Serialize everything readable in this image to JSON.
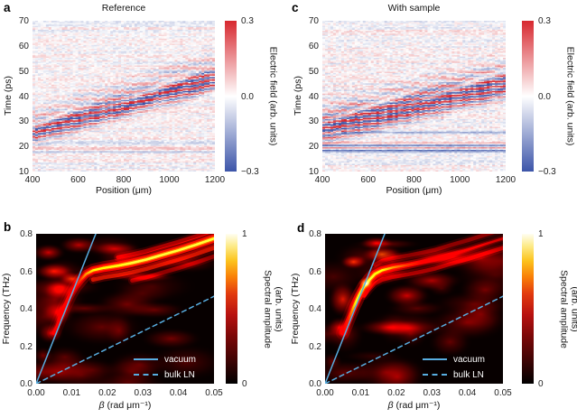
{
  "figure": {
    "background": "#ffffff"
  },
  "colors": {
    "diverging_positive": "#d7282f",
    "diverging_negative": "#3c55a9",
    "diverging_mid": "#ffffff",
    "hot_low": "#000000",
    "hot_high": "#fffef2",
    "overlay_line_cyan": "#58ade0",
    "legend_text": "#ffffff"
  },
  "chart_data": [
    {
      "panel_letter": "a",
      "type": "heatmap",
      "title": "Reference",
      "xlabel": "Position (μm)",
      "ylabel": "Time (ps)",
      "xlim": [
        400,
        1200
      ],
      "xticks": [
        "400",
        "600",
        "800",
        "1000",
        "1200"
      ],
      "ylim": [
        10,
        70
      ],
      "yticks": [
        "70",
        "60",
        "50",
        "40",
        "30",
        "20",
        "10"
      ],
      "colorbar": {
        "label": "Electric field (arb. units)",
        "ticks": [
          "0.3",
          "0.0",
          "−0.3"
        ],
        "vmin": -0.3,
        "vmax": 0.3,
        "colormap": "diverging blue-white-red"
      },
      "wavepacket": {
        "t_at_400um": 25.2,
        "t_at_1200um": 46.5,
        "sigma_ps": 2.7,
        "period_ps": 2.2,
        "peak": 0.34
      },
      "streaks": [
        {
          "t": 17.8,
          "amp": -0.07
        },
        {
          "t": 19.0,
          "amp": 0.06
        },
        {
          "t": 21.2,
          "amp": -0.055
        }
      ],
      "noise": 0.045,
      "seed": 7
    },
    {
      "panel_letter": "b",
      "type": "heatmap",
      "title": "",
      "xlabel_symbol": "β",
      "xlabel_rest": "(rad μm⁻¹)",
      "ylabel": "Frequency (THz)",
      "xlim": [
        0,
        0.05
      ],
      "xticks": [
        "0.00",
        "0.01",
        "0.02",
        "0.03",
        "0.04",
        "0.05"
      ],
      "ylim": [
        0,
        0.8
      ],
      "yticks": [
        "0.8",
        "0.6",
        "0.4",
        "0.2",
        "0.0"
      ],
      "colorbar": {
        "label_line1": "Spectral amplitude",
        "label_line2": "(arb. units)",
        "ticks": [
          "1",
          "0"
        ],
        "vmin": 0,
        "vmax": 1,
        "colormap": "hot"
      },
      "lines": [
        {
          "label": "vacuum",
          "style": "solid",
          "slope_thz_per_rad_um": 47.7
        },
        {
          "label": "bulk LN",
          "style": "dashed",
          "slope_thz_per_rad_um": 9.33
        }
      ],
      "mode_curve": [
        [
          0.005,
          0.27,
          0.22
        ],
        [
          0.0065,
          0.34,
          0.26
        ],
        [
          0.008,
          0.41,
          0.3
        ],
        [
          0.0095,
          0.47,
          0.36
        ],
        [
          0.011,
          0.52,
          0.45
        ],
        [
          0.0125,
          0.555,
          0.55
        ],
        [
          0.014,
          0.585,
          0.7
        ],
        [
          0.016,
          0.605,
          0.82
        ],
        [
          0.019,
          0.618,
          0.9
        ],
        [
          0.023,
          0.63,
          0.95
        ],
        [
          0.027,
          0.645,
          1.0
        ],
        [
          0.031,
          0.663,
          1.0
        ],
        [
          0.035,
          0.685,
          1.0
        ],
        [
          0.04,
          0.712,
          1.0
        ],
        [
          0.045,
          0.742,
          1.0
        ],
        [
          0.05,
          0.775,
          1.0
        ]
      ],
      "side_fringes": [
        {
          "offset": -0.05,
          "from": 0.016,
          "intensity": 0.42
        },
        {
          "offset": 0.045,
          "from": 0.02,
          "intensity": 0.3
        },
        {
          "offset": -0.095,
          "from": 0.025,
          "intensity": 0.25
        }
      ],
      "glows": [
        {
          "x": 0.0035,
          "y": 0.7,
          "rx": 0.005,
          "ry": 0.05,
          "i": 0.33
        },
        {
          "x": 0.005,
          "y": 0.6,
          "rx": 0.006,
          "ry": 0.05,
          "i": 0.4
        },
        {
          "x": 0.0065,
          "y": 0.5,
          "rx": 0.005,
          "ry": 0.06,
          "i": 0.38
        },
        {
          "x": 0.006,
          "y": 0.38,
          "rx": 0.005,
          "ry": 0.07,
          "i": 0.33
        },
        {
          "x": 0.004,
          "y": 0.27,
          "rx": 0.004,
          "ry": 0.06,
          "i": 0.28
        },
        {
          "x": 0.01,
          "y": 0.56,
          "rx": 0.004,
          "ry": 0.04,
          "i": 0.45
        },
        {
          "x": 0.002,
          "y": 0.15,
          "rx": 0.003,
          "ry": 0.05,
          "i": 0.18
        },
        {
          "x": 0.012,
          "y": 0.74,
          "rx": 0.006,
          "ry": 0.05,
          "i": 0.3
        },
        {
          "x": 0.022,
          "y": 0.72,
          "rx": 0.008,
          "ry": 0.04,
          "i": 0.25
        },
        {
          "x": 0.03,
          "y": 0.57,
          "rx": 0.01,
          "ry": 0.03,
          "i": 0.3
        }
      ],
      "noise_blobs": 26,
      "seed": 11
    },
    {
      "panel_letter": "c",
      "type": "heatmap",
      "title": "With sample",
      "xlabel": "Position (μm)",
      "ylabel": "Time (ps)",
      "xlim": [
        400,
        1200
      ],
      "xticks": [
        "400",
        "600",
        "800",
        "1000",
        "1200"
      ],
      "ylim": [
        10,
        70
      ],
      "yticks": [
        "70",
        "60",
        "50",
        "40",
        "30",
        "20",
        "10"
      ],
      "colorbar": {
        "label": "Electric field (arb. units)",
        "ticks": [
          "0.3",
          "0.0",
          "−0.3"
        ],
        "vmin": -0.3,
        "vmax": 0.3,
        "colormap": "diverging blue-white-red"
      },
      "wavepacket": {
        "t_at_400um": 26.8,
        "t_at_1200um": 44.2,
        "sigma_ps": 3.4,
        "period_ps": 2.1,
        "peak": 0.36
      },
      "streaks": [
        {
          "t": 18.4,
          "amp": -0.22
        },
        {
          "t": 19.3,
          "amp": 0.17
        },
        {
          "t": 20.4,
          "amp": -0.24
        },
        {
          "t": 21.3,
          "amp": 0.13
        },
        {
          "t": 25.4,
          "amp": -0.12
        }
      ],
      "noise": 0.05,
      "seed": 21
    },
    {
      "panel_letter": "d",
      "type": "heatmap",
      "title": "",
      "xlabel_symbol": "β",
      "xlabel_rest": "(rad μm⁻¹)",
      "ylabel": "Frequency (THz)",
      "xlim": [
        0,
        0.05
      ],
      "xticks": [
        "0.00",
        "0.01",
        "0.02",
        "0.03",
        "0.04",
        "0.05"
      ],
      "ylim": [
        0,
        0.8
      ],
      "yticks": [
        "0.8",
        "0.6",
        "0.4",
        "0.2",
        "0.0"
      ],
      "colorbar": {
        "label_line1": "Spectral amplitude",
        "label_line2": "(arb. units)",
        "ticks": [
          "1",
          "0"
        ],
        "vmin": 0,
        "vmax": 1,
        "colormap": "hot"
      },
      "lines": [
        {
          "label": "vacuum",
          "style": "solid",
          "slope_thz_per_rad_um": 47.7
        },
        {
          "label": "bulk LN",
          "style": "dashed",
          "slope_thz_per_rad_um": 9.33
        }
      ],
      "mode_curve": [
        [
          0.005,
          0.27,
          0.3
        ],
        [
          0.0065,
          0.34,
          0.5
        ],
        [
          0.008,
          0.41,
          0.75
        ],
        [
          0.0095,
          0.47,
          0.95
        ],
        [
          0.011,
          0.52,
          1.0
        ],
        [
          0.0125,
          0.555,
          1.0
        ],
        [
          0.014,
          0.585,
          0.95
        ],
        [
          0.016,
          0.605,
          0.85
        ],
        [
          0.019,
          0.62,
          0.7
        ],
        [
          0.023,
          0.633,
          0.55
        ],
        [
          0.027,
          0.648,
          0.42
        ],
        [
          0.031,
          0.665,
          0.34
        ],
        [
          0.035,
          0.688,
          0.28
        ],
        [
          0.04,
          0.715,
          0.24
        ],
        [
          0.045,
          0.745,
          0.2
        ],
        [
          0.05,
          0.775,
          0.18
        ]
      ],
      "side_fringes": [
        {
          "offset": -0.05,
          "from": 0.011,
          "intensity": 0.3
        },
        {
          "offset": 0.05,
          "from": 0.014,
          "intensity": 0.25
        }
      ],
      "glows": [
        {
          "x": 0.016,
          "y": 0.69,
          "rx": 0.006,
          "ry": 0.05,
          "i": 0.5
        },
        {
          "x": 0.0145,
          "y": 0.75,
          "rx": 0.005,
          "ry": 0.04,
          "i": 0.35
        },
        {
          "x": 0.005,
          "y": 0.45,
          "rx": 0.0045,
          "ry": 0.1,
          "i": 0.4
        },
        {
          "x": 0.004,
          "y": 0.3,
          "rx": 0.004,
          "ry": 0.06,
          "i": 0.3
        },
        {
          "x": 0.023,
          "y": 0.47,
          "rx": 0.007,
          "ry": 0.07,
          "i": 0.33
        },
        {
          "x": 0.03,
          "y": 0.55,
          "rx": 0.009,
          "ry": 0.06,
          "i": 0.28
        },
        {
          "x": 0.018,
          "y": 0.3,
          "rx": 0.01,
          "ry": 0.05,
          "i": 0.25
        },
        {
          "x": 0.035,
          "y": 0.68,
          "rx": 0.012,
          "ry": 0.06,
          "i": 0.22
        },
        {
          "x": 0.045,
          "y": 0.5,
          "rx": 0.008,
          "ry": 0.08,
          "i": 0.18
        },
        {
          "x": 0.008,
          "y": 0.65,
          "rx": 0.004,
          "ry": 0.04,
          "i": 0.45
        },
        {
          "x": 0.0115,
          "y": 0.535,
          "rx": 0.0022,
          "ry": 0.035,
          "i": 1.0
        },
        {
          "x": 0.002,
          "y": 0.12,
          "rx": 0.003,
          "ry": 0.05,
          "i": 0.15
        }
      ],
      "noise_blobs": 26,
      "seed": 31
    }
  ]
}
